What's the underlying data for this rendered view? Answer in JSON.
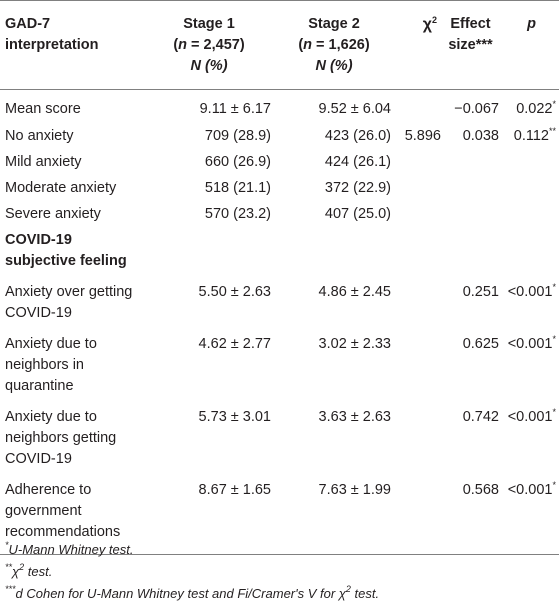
{
  "headers": {
    "col0": "GAD-7 interpretation",
    "col1_line1": "Stage 1",
    "col1_line2_pre": "(",
    "col1_n": "n",
    "col1_line2_post": " = 2,457)",
    "col1_line3": "N (%)",
    "col2_line1": "Stage 2",
    "col2_line2_pre": "(",
    "col2_n": "n",
    "col2_line2_post": " = 1,626)",
    "col2_line3": "N (%)",
    "col3": "χ",
    "col3_sup": "2",
    "col4_line1": "Effect",
    "col4_line2": "size***",
    "col5": "p"
  },
  "rows": [
    {
      "label": "Mean score",
      "stage1": "9.11 ± 6.17",
      "stage2": "9.52 ± 6.04",
      "chi2": "",
      "effect": "−0.067",
      "p": "0.022",
      "p_mark": "*"
    },
    {
      "label": "No anxiety",
      "stage1": "709 (28.9)",
      "stage2": "423 (26.0)",
      "chi2": "5.896",
      "effect": "0.038",
      "p": "0.112",
      "p_mark": "**"
    },
    {
      "label": "Mild anxiety",
      "stage1": "660 (26.9)",
      "stage2": "424 (26.1)",
      "chi2": "",
      "effect": "",
      "p": "",
      "p_mark": ""
    },
    {
      "label": "Moderate anxiety",
      "stage1": "518 (21.1)",
      "stage2": "372 (22.9)",
      "chi2": "",
      "effect": "",
      "p": "",
      "p_mark": ""
    },
    {
      "label": "Severe anxiety",
      "stage1": "570 (23.2)",
      "stage2": "407 (25.0)",
      "chi2": "",
      "effect": "",
      "p": "",
      "p_mark": ""
    }
  ],
  "section": "COVID-19 subjective feeling",
  "section_rows": [
    {
      "label": "Anxiety over getting COVID-19",
      "stage1": "5.50 ± 2.63",
      "stage2": "4.86 ± 2.45",
      "chi2": "",
      "effect": "0.251",
      "p": "<0.001",
      "p_mark": "*"
    },
    {
      "label": "Anxiety due to neighbors in quarantine",
      "stage1": "4.62 ± 2.77",
      "stage2": "3.02 ± 2.33",
      "chi2": "",
      "effect": "0.625",
      "p": "<0.001",
      "p_mark": "*"
    },
    {
      "label": "Anxiety due to neighbors getting COVID-19",
      "stage1": "5.73 ± 3.01",
      "stage2": "3.63 ± 2.63",
      "chi2": "",
      "effect": "0.742",
      "p": "<0.001",
      "p_mark": "*"
    },
    {
      "label": "Adherence to government recommendations",
      "stage1": "8.67 ± 1.65",
      "stage2": "7.63 ± 1.99",
      "chi2": "",
      "effect": "0.568",
      "p": "<0.001",
      "p_mark": "*"
    }
  ],
  "notes": {
    "n1_mark": "*",
    "n1_text": "U-Mann Whitney test.",
    "n2_mark": "**",
    "n2_chi": "χ",
    "n2_sup": "2",
    "n2_text": " test.",
    "n3_mark": "***",
    "n3_text": "d Cohen for U-Mann Whitney test and Fi/Cramer's V for ",
    "n3_chi": "χ",
    "n3_sup": "2",
    "n3_end": " test."
  }
}
